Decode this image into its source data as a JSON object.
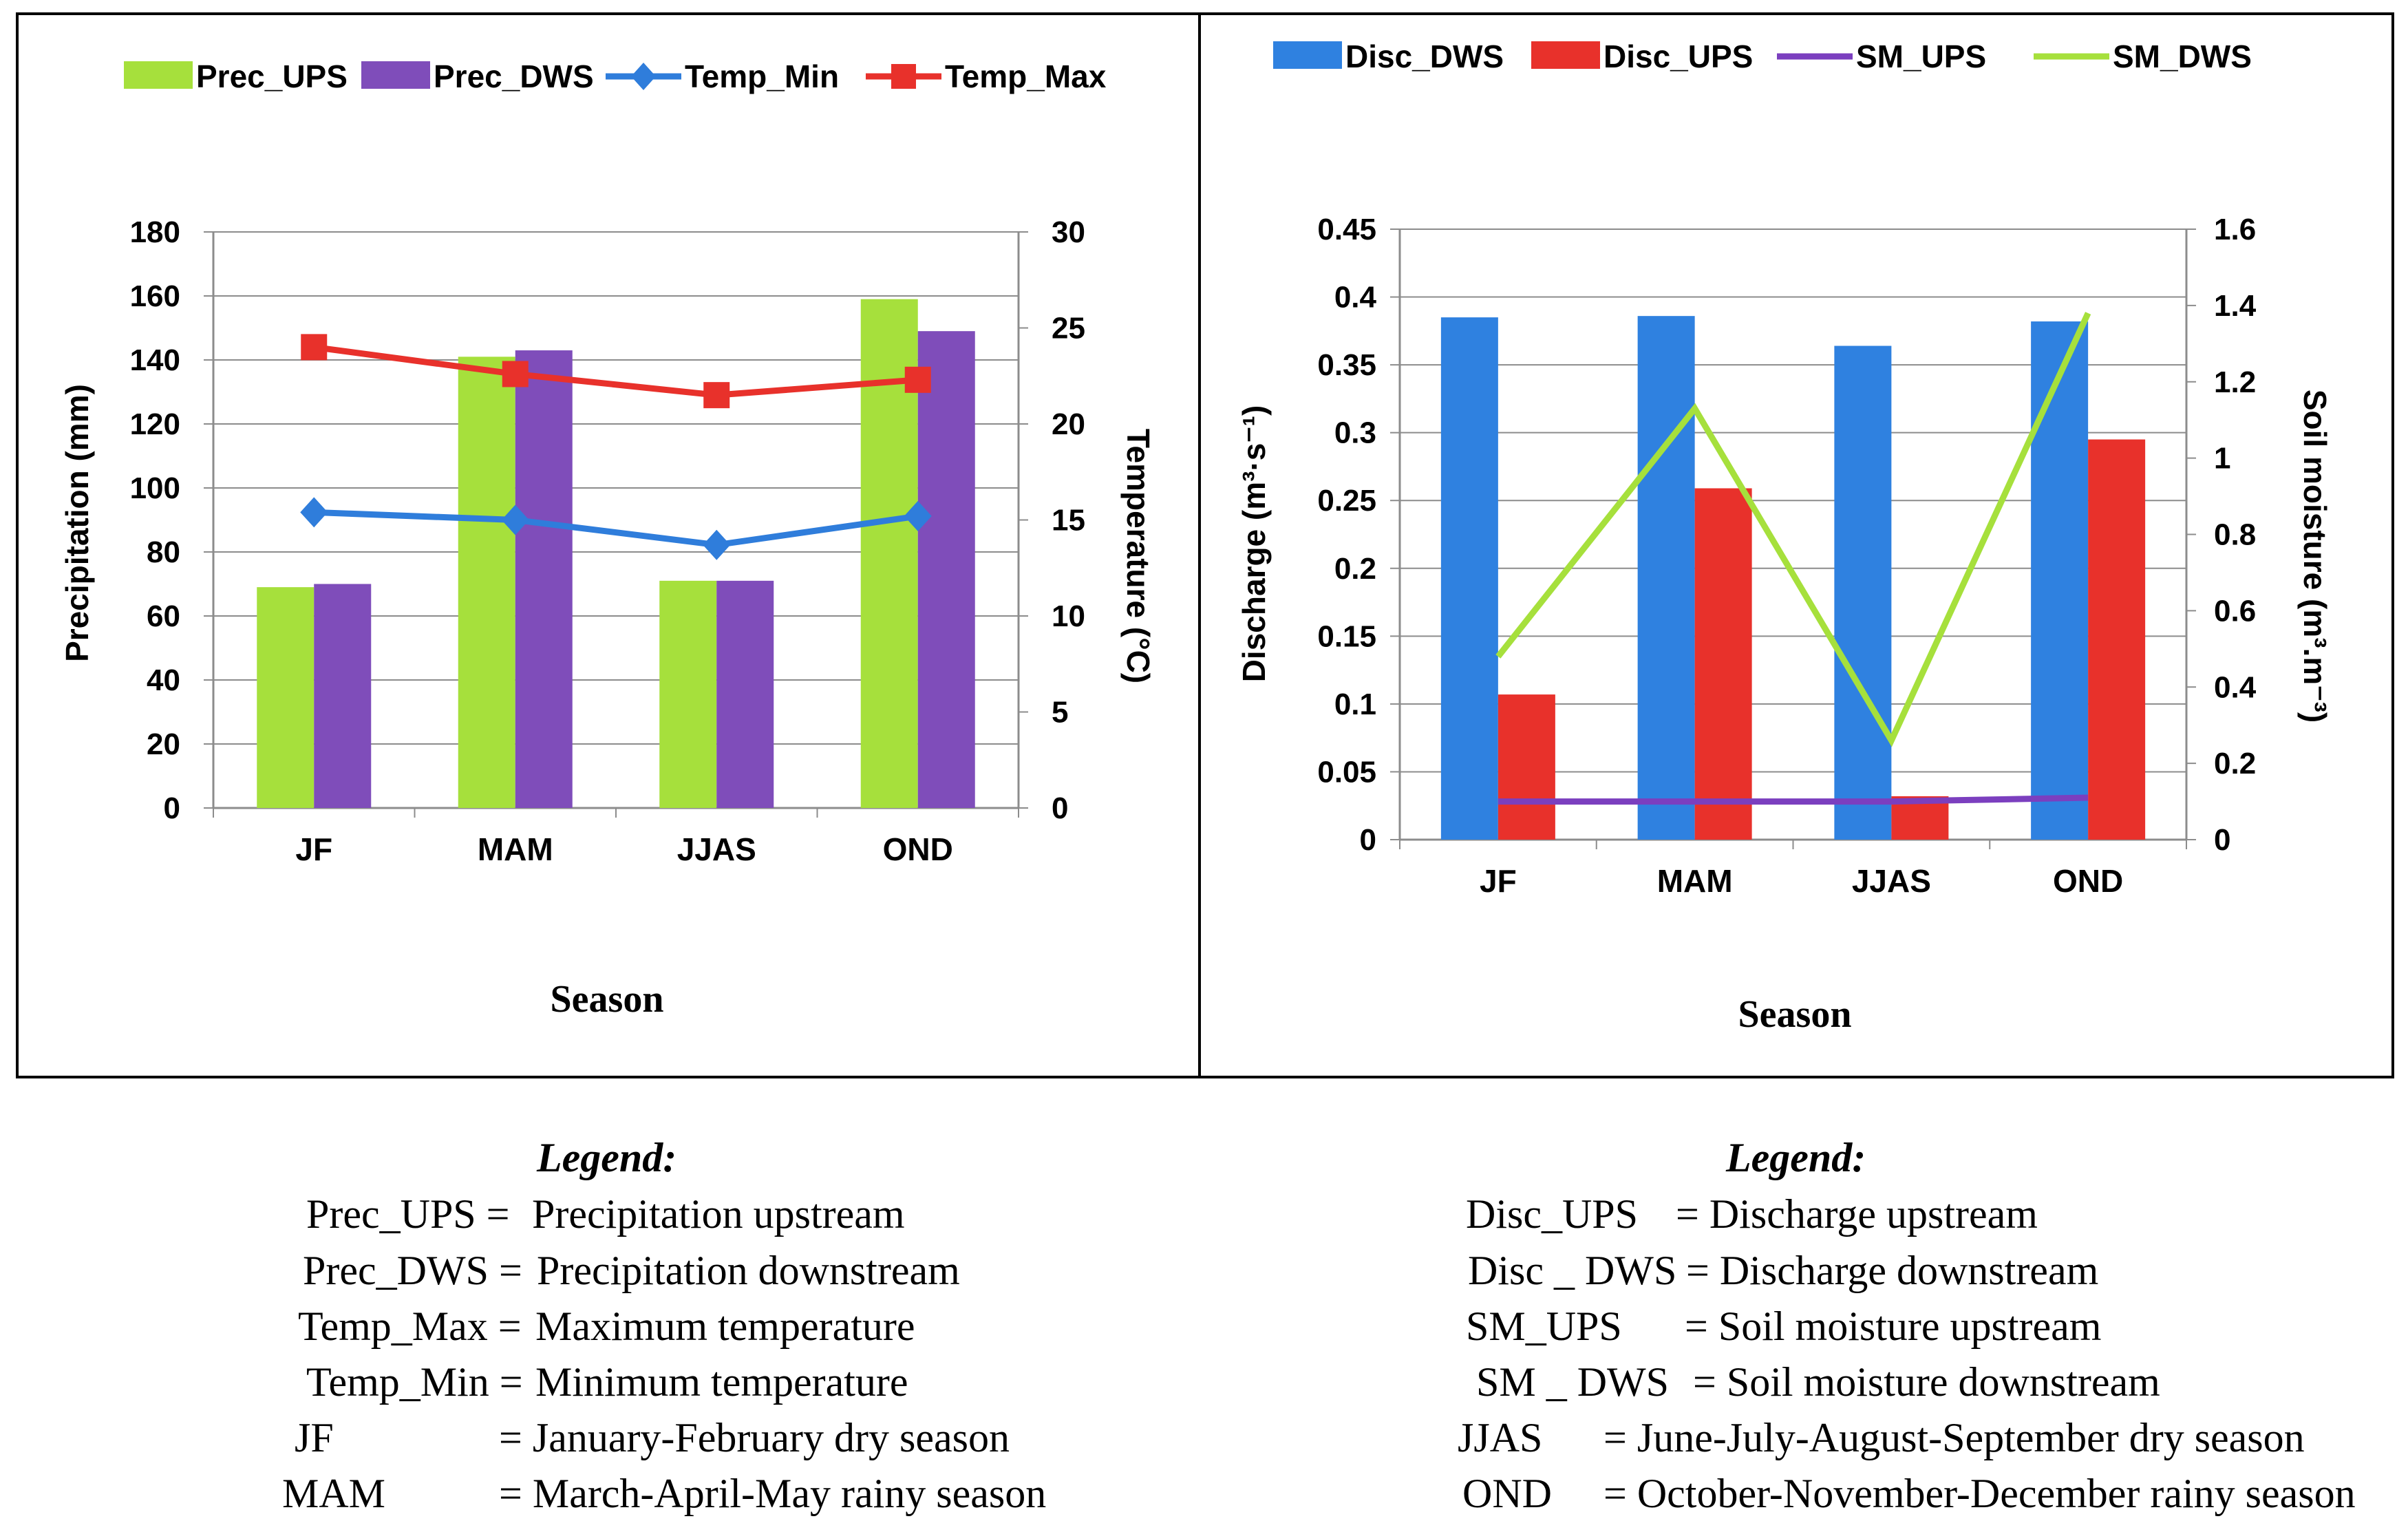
{
  "chart_data": [
    {
      "type": "bar+line",
      "categories": [
        "JF",
        "MAM",
        "JJAS",
        "OND"
      ],
      "series": [
        {
          "name": "Prec_UPS",
          "kind": "bar",
          "axis": "left",
          "color": "#a6e03c",
          "values": [
            69,
            141,
            71,
            159
          ]
        },
        {
          "name": "Prec_DWS",
          "kind": "bar",
          "axis": "left",
          "color": "#7f4dba",
          "values": [
            70,
            143,
            71,
            149
          ]
        },
        {
          "name": "Temp_Min",
          "kind": "line",
          "axis": "right",
          "color": "#2f7ddb",
          "marker": "diamond",
          "values": [
            15.4,
            15.0,
            13.7,
            15.2
          ]
        },
        {
          "name": "Temp_Max",
          "kind": "line",
          "axis": "right",
          "color": "#e8312b",
          "marker": "square",
          "values": [
            24.0,
            22.6,
            21.5,
            22.3
          ]
        }
      ],
      "legend": [
        "Prec_UPS",
        "Prec_DWS",
        "Temp_Min",
        "Temp_Max"
      ],
      "ylabel": "Precipitation (mm)",
      "y2label": "Temperature (°C)",
      "xlabel": "Season",
      "ylim": [
        0,
        180
      ],
      "yticks": [
        "0",
        "20",
        "40",
        "60",
        "80",
        "100",
        "120",
        "140",
        "160",
        "180"
      ],
      "y2lim": [
        0,
        30
      ],
      "y2ticks": [
        "0",
        "5",
        "10",
        "15",
        "20",
        "25",
        "30"
      ]
    },
    {
      "type": "bar+line",
      "categories": [
        "JF",
        "MAM",
        "JJAS",
        "OND"
      ],
      "series": [
        {
          "name": "Disc_DWS",
          "kind": "bar",
          "axis": "left",
          "color": "#2f81e0",
          "values": [
            0.385,
            0.386,
            0.364,
            0.382
          ]
        },
        {
          "name": "Disc_UPS",
          "kind": "bar",
          "axis": "left",
          "color": "#e8312b",
          "values": [
            0.107,
            0.259,
            0.032,
            0.295
          ]
        },
        {
          "name": "SM_UPS",
          "kind": "line",
          "axis": "right",
          "color": "#7b3fbf",
          "values": [
            0.1,
            0.1,
            0.1,
            0.11
          ]
        },
        {
          "name": "SM_DWS",
          "kind": "line",
          "axis": "right",
          "color": "#a6e03c",
          "values": [
            0.48,
            1.13,
            0.26,
            1.38
          ]
        }
      ],
      "legend": [
        "Disc_DWS",
        "Disc_UPS",
        "SM_UPS",
        "SM_DWS"
      ],
      "ylabel": "Discharge (m³·s⁻¹)",
      "y2label": "Soil moisture (m³.m⁻³)",
      "xlabel": "Season",
      "ylim": [
        0,
        0.45
      ],
      "yticks": [
        "0",
        "0.05",
        "0.1",
        "0.15",
        "0.2",
        "0.25",
        "0.3",
        "0.35",
        "0.4",
        "0.45"
      ],
      "y2lim": [
        0,
        1.6
      ],
      "y2ticks": [
        "0",
        "0.2",
        "0.4",
        "0.6",
        "0.8",
        "1",
        "1.2",
        "1.4",
        "1.6"
      ]
    }
  ],
  "notes": {
    "left": {
      "title": "Legend:",
      "rows": [
        {
          "term": "Prec_UPS =",
          "desc": "Precipitation upstream"
        },
        {
          "term": "Prec_DWS =",
          "desc": "Precipitation downstream"
        },
        {
          "term": "Temp_Max =",
          "desc": "Maximum temperature"
        },
        {
          "term": "Temp_Min =",
          "desc": "Minimum temperature"
        },
        {
          "term": "JF",
          "desc": "= January-February dry season"
        },
        {
          "term": "MAM",
          "desc": "= March-April-May rainy season"
        }
      ]
    },
    "right": {
      "title": "Legend:",
      "rows": [
        {
          "term": "Disc_UPS",
          "desc": "= Discharge upstream"
        },
        {
          "term": "Disc _ DWS",
          "desc": "= Discharge downstream"
        },
        {
          "term": "SM_UPS",
          "desc": "= Soil moisture upstream"
        },
        {
          "term": "SM _ DWS",
          "desc": "= Soil moisture downstream"
        },
        {
          "term": "JJAS",
          "desc": "= June-July-August-September dry season"
        },
        {
          "term": "OND",
          "desc": "= October-November-December rainy season"
        }
      ]
    }
  }
}
